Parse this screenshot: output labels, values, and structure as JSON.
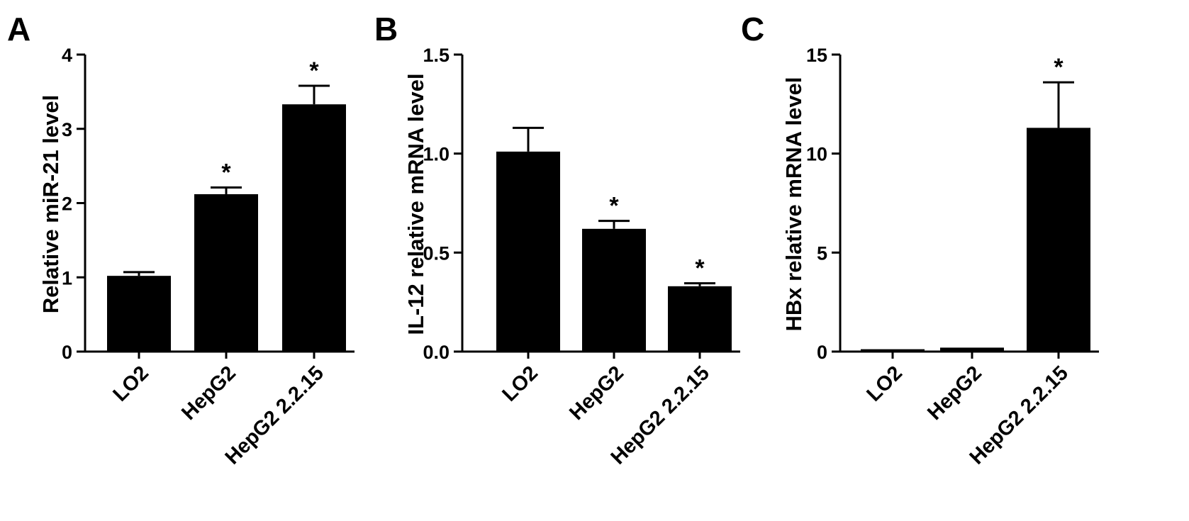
{
  "figure": {
    "panels": [
      "A",
      "B",
      "C"
    ]
  },
  "chart_data": [
    {
      "type": "bar",
      "panel": "A",
      "categories": [
        "LO2",
        "HepG2",
        "HepG2 2.2.15"
      ],
      "values": [
        1.02,
        2.12,
        3.33
      ],
      "errors": [
        0.05,
        0.09,
        0.25
      ],
      "significance": [
        "",
        "*",
        "*"
      ],
      "ylabel": "Relative miR-21 level",
      "ylim": [
        0,
        4
      ],
      "yticks": [
        "0",
        "1",
        "2",
        "3",
        "4"
      ],
      "ytick_values": [
        0,
        1,
        2,
        3,
        4
      ],
      "grid": false,
      "bar_color": "#000000"
    },
    {
      "type": "bar",
      "panel": "B",
      "categories": [
        "LO2",
        "HepG2",
        "HepG2 2.2.15"
      ],
      "values": [
        1.01,
        0.62,
        0.33
      ],
      "errors": [
        0.12,
        0.04,
        0.015
      ],
      "significance": [
        "",
        "*",
        "*"
      ],
      "ylabel": "IL-12 relative mRNA level",
      "ylim": [
        0,
        1.5
      ],
      "yticks": [
        "0.0",
        "0.5",
        "1.0",
        "1.5"
      ],
      "ytick_values": [
        0,
        0.5,
        1.0,
        1.5
      ],
      "grid": false,
      "bar_color": "#000000"
    },
    {
      "type": "bar",
      "panel": "C",
      "categories": [
        "LO2",
        "HepG2",
        "HepG2 2.2.15"
      ],
      "values": [
        0.12,
        0.2,
        11.3
      ],
      "errors": [
        0.0,
        0.0,
        2.3
      ],
      "significance": [
        "",
        "",
        "*"
      ],
      "ylabel": "HBx relative mRNA level",
      "ylim": [
        0,
        15
      ],
      "yticks": [
        "0",
        "5",
        "10",
        "15"
      ],
      "ytick_values": [
        0,
        5,
        10,
        15
      ],
      "grid": false,
      "bar_color": "#000000"
    }
  ]
}
